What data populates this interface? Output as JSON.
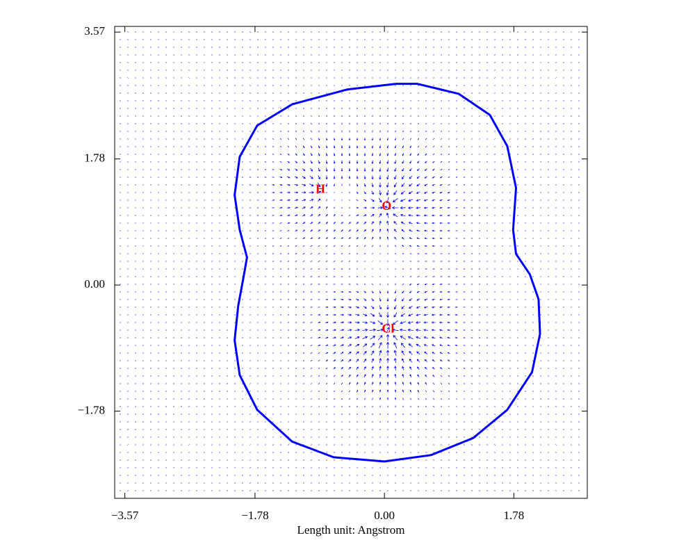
{
  "chart_data": {
    "type": "vector-field",
    "xlabel": "Length unit: Angstrom",
    "xlim": [
      -3.71,
      2.79
    ],
    "ylim": [
      -3.01,
      3.65
    ],
    "xticks": [
      {
        "value": -3.57,
        "label": "−3.57"
      },
      {
        "value": -1.78,
        "label": "−1.78"
      },
      {
        "value": 0,
        "label": "0.00"
      },
      1.78
    ],
    "yticks": [
      {
        "value": -1.78,
        "label": "−1.78"
      },
      {
        "value": 0,
        "label": "0.00"
      },
      1.78,
      3.57
    ],
    "field_color": "#0000ff",
    "contour": {
      "color": "#0000ff",
      "x": [
        0.0,
        0.64,
        1.22,
        1.69,
        2.03,
        2.14,
        2.12,
        2.0,
        1.81,
        1.77,
        1.81,
        1.69,
        1.45,
        1.02,
        0.45,
        0.16,
        -0.51,
        -1.27,
        -1.75,
        -1.99,
        -2.06,
        -1.99,
        -1.89,
        -1.94,
        -2.01,
        -2.06,
        -1.99,
        -1.75,
        -1.27,
        -0.7,
        0.0
      ],
      "y": [
        -2.49,
        -2.4,
        -2.16,
        -1.76,
        -1.23,
        -0.69,
        -0.2,
        0.15,
        0.44,
        0.78,
        1.37,
        1.96,
        2.4,
        2.7,
        2.84,
        2.84,
        2.76,
        2.55,
        2.25,
        1.81,
        1.27,
        0.78,
        0.39,
        0.1,
        -0.29,
        -0.78,
        -1.27,
        -1.76,
        -2.21,
        -2.43,
        -2.49
      ]
    },
    "atoms": [
      {
        "label": "H",
        "x": -0.88,
        "y": 1.34
      },
      {
        "label": "O",
        "x": 0.03,
        "y": 1.1
      },
      {
        "label": "Cl",
        "x": 0.05,
        "y": -0.63
      }
    ]
  }
}
